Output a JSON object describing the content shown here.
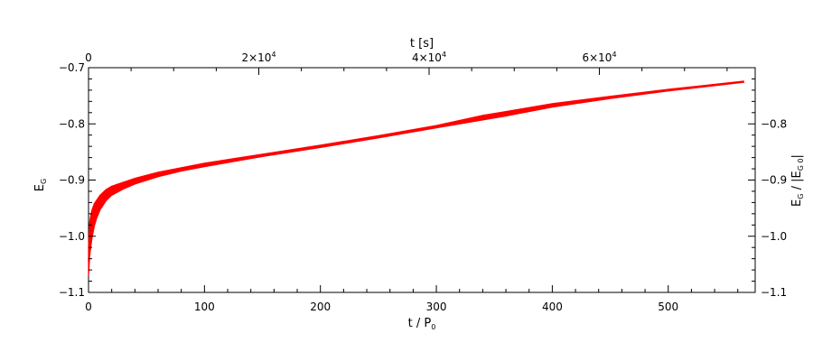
{
  "chart_data": {
    "type": "line",
    "title": "",
    "xlabel": {
      "main": "t / P",
      "sub": "0"
    },
    "top_xlabel": "t [s]",
    "ylabel": {
      "main": "E",
      "sub": "G"
    },
    "right_ylabel": {
      "main": "E",
      "sub": "G",
      "suffix": " / |E",
      "sub2": "G 0",
      "end": "|"
    },
    "xlim": [
      0,
      575
    ],
    "ylim": [
      -1.1,
      -0.7
    ],
    "top_xlim_s": [
      0,
      78300
    ],
    "x_ticks": [
      {
        "value": 0,
        "label": "0"
      },
      {
        "value": 100,
        "label": "100"
      },
      {
        "value": 200,
        "label": "200"
      },
      {
        "value": 300,
        "label": "300"
      },
      {
        "value": 400,
        "label": "400"
      },
      {
        "value": 500,
        "label": "500"
      }
    ],
    "top_x_ticks": [
      {
        "value": 0,
        "base": "0",
        "exp": ""
      },
      {
        "value": 20000,
        "base": "2×10",
        "exp": "4"
      },
      {
        "value": 40000,
        "base": "4×10",
        "exp": "4"
      },
      {
        "value": 60000,
        "base": "6×10",
        "exp": "4"
      }
    ],
    "y_ticks": [
      {
        "value": -0.7,
        "label": "−0.7"
      },
      {
        "value": -0.8,
        "label": "−0.8"
      },
      {
        "value": -0.9,
        "label": "−0.9"
      },
      {
        "value": -1.0,
        "label": "−1.0"
      },
      {
        "value": -1.1,
        "label": "−1.1"
      }
    ],
    "right_y_ticks": [
      {
        "value": -0.8,
        "label": "−0.8"
      },
      {
        "value": -0.9,
        "label": "−0.9"
      },
      {
        "value": -1.0,
        "label": "−1.0"
      },
      {
        "value": -1.1,
        "label": "−1.1"
      }
    ],
    "grid": false,
    "legend": "none",
    "series": [
      {
        "color": "#ff0000",
        "x": [
          0,
          0.5,
          1,
          2,
          3,
          5,
          7,
          10,
          15,
          20,
          30,
          40,
          60,
          80,
          100,
          150,
          200,
          250,
          300,
          320,
          340,
          360,
          400,
          450,
          500,
          565
        ],
        "y_mid": [
          -1.045,
          -1.025,
          -1.005,
          -0.99,
          -0.978,
          -0.962,
          -0.952,
          -0.94,
          -0.927,
          -0.919,
          -0.91,
          -0.902,
          -0.89,
          -0.881,
          -0.873,
          -0.856,
          -0.84,
          -0.823,
          -0.805,
          -0.797,
          -0.789,
          -0.782,
          -0.767,
          -0.753,
          -0.74,
          -0.725
        ],
        "y_half": [
          0.025,
          0.03,
          0.03,
          0.028,
          0.025,
          0.02,
          0.016,
          0.013,
          0.01,
          0.008,
          0.006,
          0.005,
          0.004,
          0.003,
          0.003,
          0.002,
          0.002,
          0.002,
          0.002,
          0.003,
          0.004,
          0.004,
          0.003,
          0.002,
          0.0015,
          0.001
        ]
      }
    ]
  }
}
